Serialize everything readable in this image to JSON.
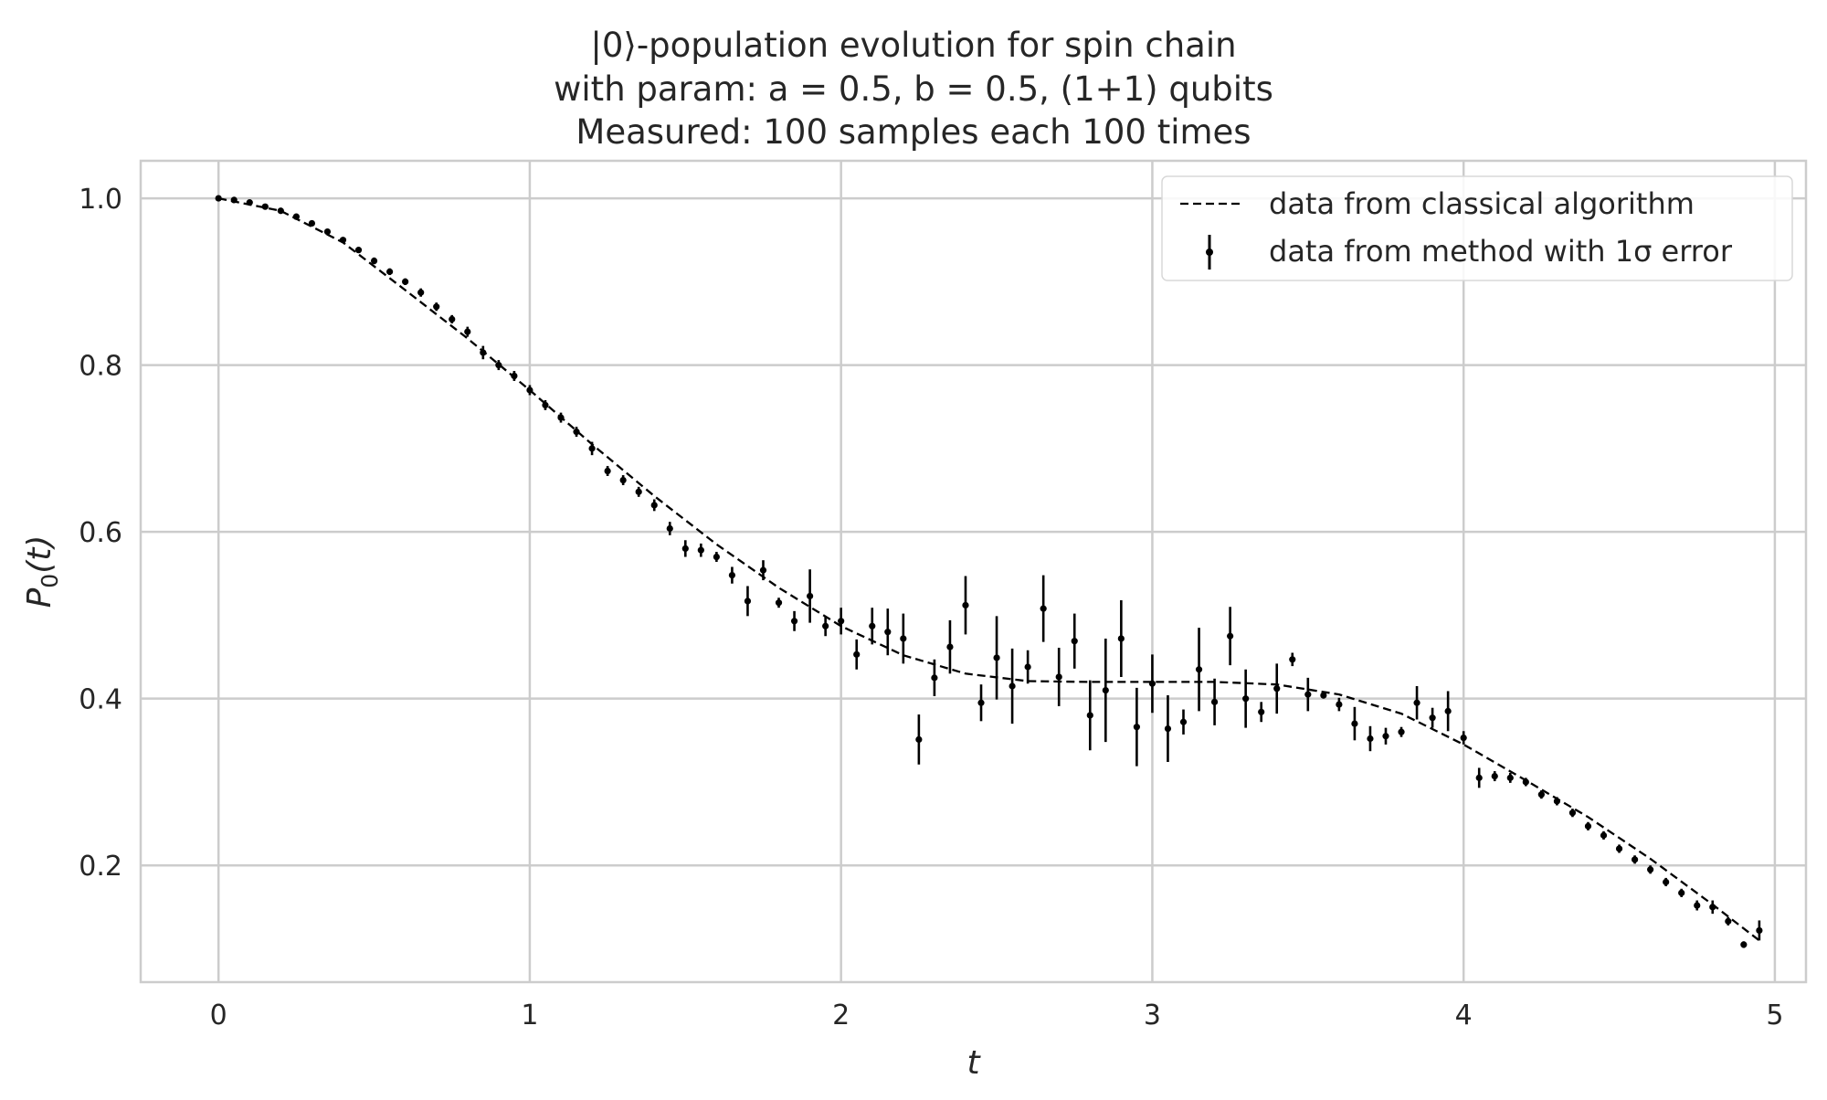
{
  "chart_data": {
    "type": "scatter",
    "title": [
      "|0⟩-population evolution for spin chain",
      "with param: a = 0.5, b = 0.5, (1+1) qubits",
      "Measured: 100 samples each 100 times"
    ],
    "xlabel": "t",
    "ylabel": {
      "base": "P",
      "sub": "0",
      "suffix": "(t)"
    },
    "xlim": [
      -0.25,
      5.1
    ],
    "ylim": [
      0.06,
      1.045
    ],
    "xticks": [
      0,
      1,
      2,
      3,
      4,
      5
    ],
    "xtick_labels": [
      "0",
      "1",
      "2",
      "3",
      "4",
      "5"
    ],
    "yticks": [
      0.2,
      0.4,
      0.6,
      0.8,
      1.0
    ],
    "ytick_labels": [
      "0.2",
      "0.4",
      "0.6",
      "0.8",
      "1.0"
    ],
    "grid": true,
    "legend_position": "top-right",
    "legend": [
      "data from classical algorithm",
      "data from method with 1σ error"
    ],
    "colors": {
      "series": "#000000",
      "grid": "#cccccc",
      "text": "#262626"
    },
    "series": [
      {
        "name": "data from classical algorithm",
        "style": "dashed-line",
        "x": [
          0,
          0.2,
          0.4,
          0.6,
          0.8,
          1.0,
          1.2,
          1.4,
          1.6,
          1.8,
          2.0,
          2.2,
          2.4,
          2.6,
          2.8,
          3.0,
          3.2,
          3.4,
          3.6,
          3.8,
          4.0,
          4.2,
          4.4,
          4.6,
          4.8,
          4.95
        ],
        "y": [
          1.0,
          0.985,
          0.947,
          0.89,
          0.832,
          0.77,
          0.705,
          0.643,
          0.585,
          0.533,
          0.487,
          0.452,
          0.43,
          0.421,
          0.42,
          0.42,
          0.42,
          0.417,
          0.405,
          0.382,
          0.345,
          0.302,
          0.258,
          0.208,
          0.153,
          0.11
        ]
      },
      {
        "name": "data from method with 1σ error",
        "style": "errorbar-points",
        "x": [
          0,
          0.05,
          0.1,
          0.15,
          0.2,
          0.25,
          0.3,
          0.35,
          0.4,
          0.45,
          0.5,
          0.55,
          0.6,
          0.65,
          0.7,
          0.75,
          0.8,
          0.85,
          0.9,
          0.95,
          1.0,
          1.05,
          1.1,
          1.15,
          1.2,
          1.25,
          1.3,
          1.35,
          1.4,
          1.45,
          1.5,
          1.55,
          1.6,
          1.65,
          1.7,
          1.75,
          1.8,
          1.85,
          1.9,
          1.95,
          2.0,
          2.05,
          2.1,
          2.15,
          2.2,
          2.25,
          2.3,
          2.35,
          2.4,
          2.45,
          2.5,
          2.55,
          2.6,
          2.65,
          2.7,
          2.75,
          2.8,
          2.85,
          2.9,
          2.95,
          3.0,
          3.05,
          3.1,
          3.15,
          3.2,
          3.25,
          3.3,
          3.35,
          3.4,
          3.45,
          3.5,
          3.55,
          3.6,
          3.65,
          3.7,
          3.75,
          3.8,
          3.85,
          3.9,
          3.95,
          4.0,
          4.05,
          4.1,
          4.15,
          4.2,
          4.25,
          4.3,
          4.35,
          4.4,
          4.45,
          4.5,
          4.55,
          4.6,
          4.65,
          4.7,
          4.75,
          4.8,
          4.85,
          4.9,
          4.95
        ],
        "y": [
          1.0,
          0.998,
          0.995,
          0.99,
          0.985,
          0.978,
          0.97,
          0.96,
          0.95,
          0.938,
          0.925,
          0.912,
          0.9,
          0.887,
          0.87,
          0.855,
          0.84,
          0.815,
          0.8,
          0.787,
          0.77,
          0.752,
          0.737,
          0.72,
          0.7,
          0.673,
          0.662,
          0.648,
          0.632,
          0.604,
          0.58,
          0.578,
          0.57,
          0.548,
          0.517,
          0.554,
          0.515,
          0.493,
          0.523,
          0.487,
          0.493,
          0.453,
          0.487,
          0.48,
          0.472,
          0.351,
          0.425,
          0.462,
          0.512,
          0.395,
          0.449,
          0.415,
          0.438,
          0.508,
          0.426,
          0.469,
          0.38,
          0.41,
          0.472,
          0.366,
          0.418,
          0.364,
          0.372,
          0.435,
          0.396,
          0.475,
          0.4,
          0.384,
          0.412,
          0.447,
          0.405,
          0.404,
          0.393,
          0.37,
          0.352,
          0.355,
          0.36,
          0.395,
          0.377,
          0.385,
          0.353,
          0.305,
          0.307,
          0.305,
          0.3,
          0.285,
          0.277,
          0.263,
          0.247,
          0.236,
          0.22,
          0.207,
          0.195,
          0.18,
          0.167,
          0.152,
          0.15,
          0.133,
          0.105,
          0.122
        ],
        "yerr": [
          0.002,
          0.002,
          0.002,
          0.002,
          0.002,
          0.003,
          0.003,
          0.003,
          0.003,
          0.003,
          0.004,
          0.004,
          0.004,
          0.005,
          0.005,
          0.005,
          0.006,
          0.008,
          0.006,
          0.006,
          0.006,
          0.006,
          0.006,
          0.006,
          0.008,
          0.006,
          0.006,
          0.006,
          0.007,
          0.008,
          0.01,
          0.008,
          0.006,
          0.01,
          0.018,
          0.012,
          0.006,
          0.012,
          0.032,
          0.012,
          0.016,
          0.018,
          0.022,
          0.028,
          0.03,
          0.03,
          0.022,
          0.032,
          0.035,
          0.022,
          0.05,
          0.045,
          0.02,
          0.04,
          0.035,
          0.033,
          0.042,
          0.062,
          0.046,
          0.047,
          0.035,
          0.04,
          0.015,
          0.05,
          0.028,
          0.035,
          0.035,
          0.012,
          0.03,
          0.008,
          0.02,
          0.004,
          0.008,
          0.02,
          0.015,
          0.01,
          0.006,
          0.02,
          0.012,
          0.024,
          0.008,
          0.012,
          0.006,
          0.006,
          0.005,
          0.005,
          0.005,
          0.005,
          0.005,
          0.005,
          0.005,
          0.005,
          0.005,
          0.005,
          0.005,
          0.006,
          0.008,
          0.005,
          0.004,
          0.012
        ]
      }
    ]
  }
}
